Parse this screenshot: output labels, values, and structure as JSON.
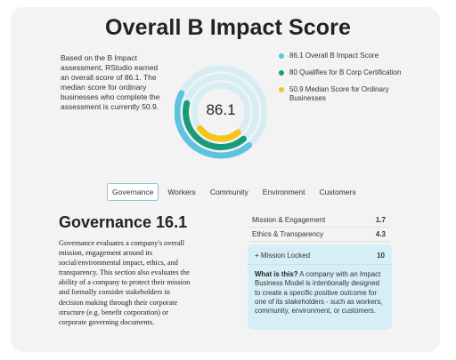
{
  "page": {
    "title": "Overall B Impact Score",
    "intro": "Based on the B Impact assessment, RStudio earned an overall score of 86.1. The median score for ordinary businesses who complete the assessment is currently 50.9.",
    "score_display": "86.1"
  },
  "donut": {
    "max": 200,
    "rings": [
      {
        "value": 86.1,
        "color": "#5ec3dc"
      },
      {
        "value": 80,
        "color": "#1a9a7a"
      },
      {
        "value": 50.9,
        "color": "#f5c518"
      }
    ],
    "track_color": "#d6edf3"
  },
  "legend": [
    {
      "label": "86.1 Overall B Impact Score",
      "color": "#5ec3dc"
    },
    {
      "label": "80 Qualifies for B Corp Certification",
      "color": "#1a9a7a"
    },
    {
      "label": "50.9 Median Score for Ordinary Businesses",
      "color": "#f5c518"
    }
  ],
  "tabs": [
    {
      "label": "Governance",
      "active": true
    },
    {
      "label": "Workers",
      "active": false
    },
    {
      "label": "Community",
      "active": false
    },
    {
      "label": "Environment",
      "active": false
    },
    {
      "label": "Customers",
      "active": false
    }
  ],
  "section": {
    "title": "Governance 16.1",
    "description": "Governance evaluates a company's overall mission, engagement around its social/environmental impact, ethics, and transparency. This section also evaluates the ability of a company to protect their mission and formally consider stakeholders in decision making through their corporate structure (e.g. benefit corporation) or corporate governing documents."
  },
  "metrics": [
    {
      "label": "Mission & Engagement",
      "value": "1.7"
    },
    {
      "label": "Ethics & Transparency",
      "value": "4.3"
    }
  ],
  "mission": {
    "label": "+ Mission Locked",
    "value": "10",
    "question": "What is this?",
    "text": "A company with an Impact Business Model is intentionally designed to create a specific positive outcome for one of its stakeholders - such as workers, community, environment, or customers."
  }
}
